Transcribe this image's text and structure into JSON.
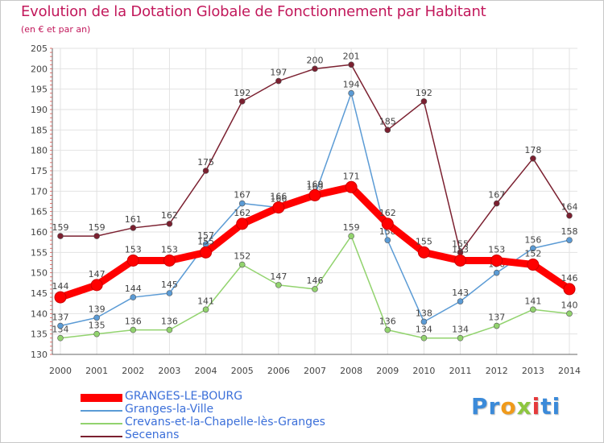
{
  "title": "Evolution de la Dotation Globale de Fonctionnement par Habitant",
  "subtitle": "(en € et par an)",
  "logo_text": "Proxiti",
  "chart_data": {
    "type": "line",
    "x": [
      "2000",
      "2001",
      "2002",
      "2003",
      "2004",
      "2005",
      "2006",
      "2007",
      "2008",
      "2009",
      "2010",
      "2011",
      "2012",
      "2013",
      "2014"
    ],
    "ylim": [
      130,
      205
    ],
    "yticks": [
      130,
      135,
      140,
      145,
      150,
      155,
      160,
      165,
      170,
      175,
      180,
      185,
      190,
      195,
      200,
      205
    ],
    "grid": true,
    "legend_position": "bottom",
    "series": [
      {
        "name": "GRANGES-LE-BOURG",
        "color": "#ff0000",
        "values": [
          144,
          147,
          153,
          153,
          155,
          162,
          166,
          169,
          171,
          162,
          155,
          153,
          153,
          152,
          146
        ]
      },
      {
        "name": "Granges-la-Ville",
        "color": "#5b9bd5",
        "values": [
          137,
          139,
          144,
          145,
          157,
          167,
          166,
          169,
          194,
          158,
          138,
          143,
          150,
          156,
          158
        ]
      },
      {
        "name": "Crevans-et-la-Chapelle-lès-Granges",
        "color": "#92d36e",
        "values": [
          134,
          135,
          136,
          136,
          141,
          152,
          147,
          146,
          159,
          136,
          134,
          134,
          137,
          141,
          140
        ]
      },
      {
        "name": "Secenans",
        "color": "#7b2030",
        "values": [
          159,
          159,
          161,
          162,
          175,
          192,
          197,
          200,
          201,
          185,
          192,
          155,
          167,
          178,
          164
        ]
      }
    ]
  }
}
